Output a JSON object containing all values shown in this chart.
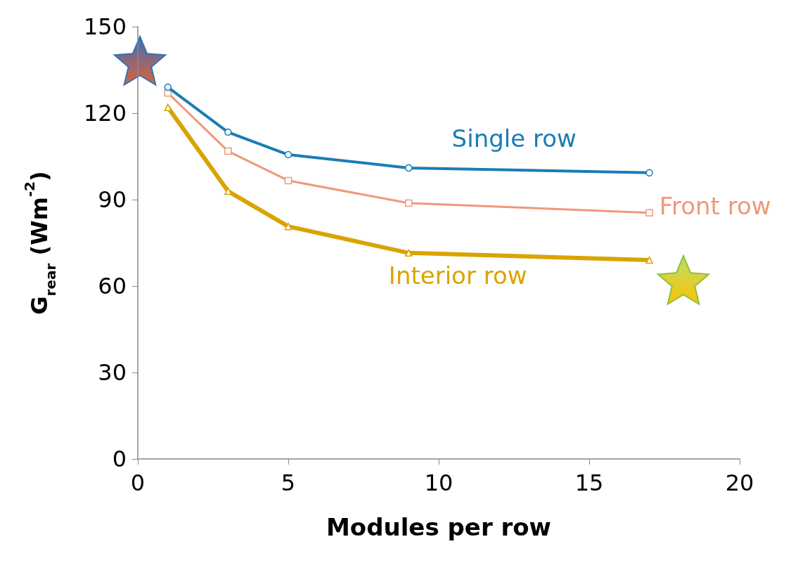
{
  "chart_data": {
    "type": "line",
    "xlabel": "Modules per row",
    "ylabel": "G$_{rear}$ (Wm$^{-2}$)",
    "x": [
      1,
      3,
      5,
      9,
      17
    ],
    "series": [
      {
        "name": "Single row",
        "color": "#1a7db5",
        "values": [
          129,
          113.4,
          105.6,
          101,
          99.3
        ],
        "marker": "circle"
      },
      {
        "name": "Front row",
        "color": "#f0987a",
        "values": [
          127,
          106.8,
          96.6,
          88.8,
          85.4
        ],
        "marker": "square"
      },
      {
        "name": "Interior row",
        "color": "#d9a400",
        "values": [
          122,
          92.9,
          80.7,
          71.5,
          69
        ],
        "marker": "triangle"
      }
    ],
    "xlim": [
      0,
      20
    ],
    "xticks": [
      0,
      5,
      10,
      15,
      20
    ],
    "ylim": [
      0,
      150
    ],
    "yticks": [
      0,
      30,
      60,
      90,
      120,
      150
    ],
    "grid": false,
    "legend": false
  }
}
